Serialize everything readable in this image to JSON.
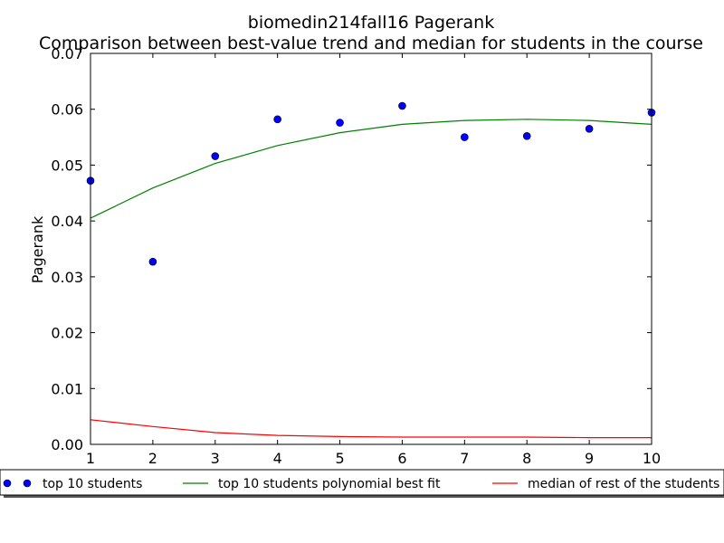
{
  "chart_data": {
    "type": "line",
    "title": "biomedin214fall16 Pagerank",
    "subtitle": "Comparison between best-value trend and median for students in the course",
    "xlabel": "",
    "ylabel": "Pagerank",
    "xlim": [
      1,
      10
    ],
    "ylim": [
      0,
      0.07
    ],
    "xticks": [
      "1",
      "2",
      "3",
      "4",
      "5",
      "6",
      "7",
      "8",
      "9",
      "10"
    ],
    "yticks": [
      "0.00",
      "0.01",
      "0.02",
      "0.03",
      "0.04",
      "0.05",
      "0.06",
      "0.07"
    ],
    "grid": false,
    "legend_position": "bottom",
    "series": [
      {
        "name": "top 10 students",
        "kind": "scatter",
        "color": "#0000ff",
        "x": [
          1,
          2,
          3,
          4,
          5,
          6,
          7,
          8,
          9,
          10
        ],
        "values": [
          0.0472,
          0.0327,
          0.0516,
          0.0582,
          0.0576,
          0.0606,
          0.055,
          0.0552,
          0.0565,
          0.0594
        ]
      },
      {
        "name": "top 10 students polynomial best fit",
        "kind": "line",
        "color": "#008000",
        "x": [
          1,
          2,
          3,
          4,
          5,
          6,
          7,
          8,
          9,
          10
        ],
        "values": [
          0.0405,
          0.0459,
          0.0503,
          0.0535,
          0.0558,
          0.0573,
          0.058,
          0.0582,
          0.058,
          0.0573
        ]
      },
      {
        "name": "median of rest of the students",
        "kind": "line",
        "color": "#ff0000",
        "x": [
          1,
          2,
          3,
          4,
          5,
          6,
          7,
          8,
          9,
          10
        ],
        "values": [
          0.0044,
          0.0032,
          0.0021,
          0.0016,
          0.0014,
          0.0013,
          0.0013,
          0.0013,
          0.0012,
          0.0012
        ]
      }
    ]
  }
}
